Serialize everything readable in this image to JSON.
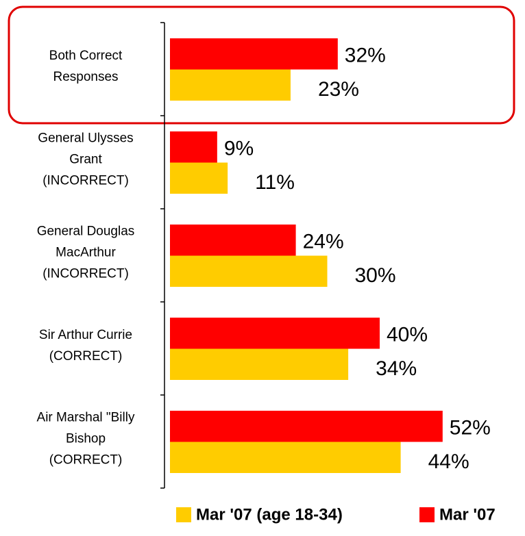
{
  "chart_data": {
    "type": "bar",
    "orientation": "horizontal",
    "categories": [
      "Both Correct\nResponses",
      "General Ulysses\nGrant\n(INCORRECT)",
      "General Douglas\nMacArthur\n(INCORRECT)",
      "Sir Arthur Currie\n(CORRECT)",
      "Air Marshal \"Billy\nBishop\n(CORRECT)"
    ],
    "series": [
      {
        "name": "Mar '07 (age 18-34)",
        "color": "#ffcc00",
        "values": [
          23,
          11,
          30,
          34,
          44
        ],
        "value_labels": [
          "23%",
          "11%",
          "30%",
          "34%",
          "44%"
        ]
      },
      {
        "name": "Mar '07",
        "color": "#ff0000",
        "values": [
          32,
          9,
          24,
          40,
          52
        ],
        "value_labels": [
          "32%",
          "9%",
          "24%",
          "40%",
          "52%"
        ]
      }
    ],
    "xlim": [
      0,
      60
    ],
    "legend": "bottom"
  }
}
